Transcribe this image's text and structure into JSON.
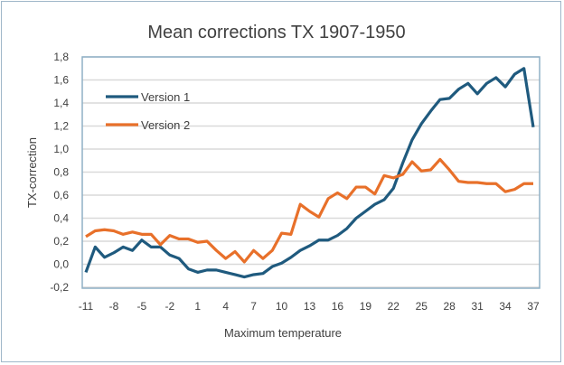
{
  "chart_data": {
    "type": "line",
    "title": "Mean corrections TX 1907-1950",
    "xlabel": "Maximum temperature",
    "ylabel": "TX-correction",
    "ylim": [
      -0.2,
      1.8
    ],
    "yticks": [
      "-0,2",
      "0,0",
      "0,2",
      "0,4",
      "0,6",
      "0,8",
      "1,0",
      "1,2",
      "1,4",
      "1,6",
      "1,8"
    ],
    "xticks": [
      "-11",
      "-8",
      "-5",
      "-2",
      "1",
      "4",
      "7",
      "10",
      "13",
      "16",
      "19",
      "22",
      "25",
      "28",
      "31",
      "34",
      "37"
    ],
    "x": [
      -11,
      -10,
      -9,
      -8,
      -7,
      -6,
      -5,
      -4,
      -3,
      -2,
      -1,
      0,
      1,
      2,
      3,
      4,
      5,
      6,
      7,
      8,
      9,
      10,
      11,
      12,
      13,
      14,
      15,
      16,
      17,
      18,
      19,
      20,
      21,
      22,
      23,
      24,
      25,
      26,
      27,
      28,
      29,
      30,
      31,
      32,
      33,
      34,
      35,
      36,
      37
    ],
    "grid": true,
    "legend_position": "top-left",
    "series": [
      {
        "name": "Version 1",
        "color": "#1f5a7e",
        "values": [
          -0.07,
          0.15,
          0.06,
          0.1,
          0.15,
          0.12,
          0.21,
          0.15,
          0.15,
          0.08,
          0.05,
          -0.04,
          -0.07,
          -0.05,
          -0.05,
          -0.07,
          -0.09,
          -0.11,
          -0.09,
          -0.08,
          -0.02,
          0.01,
          0.06,
          0.12,
          0.16,
          0.21,
          0.21,
          0.25,
          0.31,
          0.4,
          0.46,
          0.52,
          0.56,
          0.66,
          0.88,
          1.08,
          1.22,
          1.33,
          1.43,
          1.44,
          1.52,
          1.57,
          1.48,
          1.57,
          1.62,
          1.54,
          1.65,
          1.7,
          1.19
        ]
      },
      {
        "name": "Version 2",
        "color": "#e8702a",
        "values": [
          0.24,
          0.29,
          0.3,
          0.29,
          0.26,
          0.28,
          0.26,
          0.26,
          0.17,
          0.25,
          0.22,
          0.22,
          0.19,
          0.2,
          0.12,
          0.05,
          0.11,
          0.02,
          0.12,
          0.05,
          0.12,
          0.27,
          0.26,
          0.52,
          0.46,
          0.41,
          0.57,
          0.62,
          0.57,
          0.67,
          0.67,
          0.61,
          0.77,
          0.75,
          0.78,
          0.89,
          0.81,
          0.82,
          0.91,
          0.82,
          0.72,
          0.71,
          0.71,
          0.7,
          0.7,
          0.63,
          0.65,
          0.7,
          0.7
        ]
      }
    ]
  }
}
